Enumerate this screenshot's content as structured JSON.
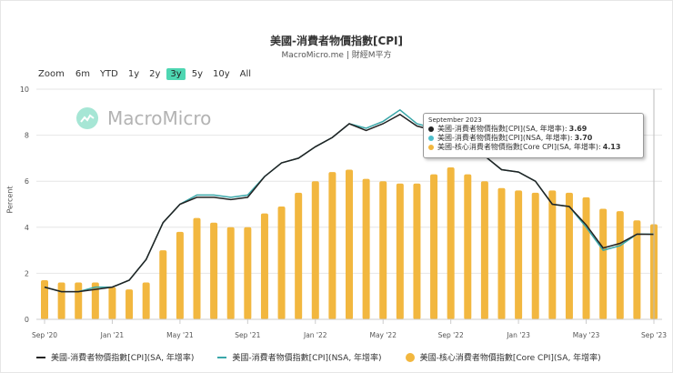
{
  "header": {
    "title": "美國-消費者物價指數[CPI]",
    "subtitle": "MacroMicro.me | 財經M平方"
  },
  "zoom": {
    "label": "Zoom",
    "buttons": [
      "6m",
      "YTD",
      "1y",
      "2y",
      "3y",
      "5y",
      "10y",
      "All"
    ],
    "active": "3y"
  },
  "watermark": "MacroMicro",
  "tooltip": {
    "title": "September 2023",
    "rows": [
      {
        "label": "美國-消費者物價指數[CPI](SA, 年增率):",
        "value": "3.69",
        "color": "#222222"
      },
      {
        "label": "美國-消費者物價指數[CPI](NSA, 年增率):",
        "value": "3.70",
        "color": "#4fbfcc"
      },
      {
        "label": "美國-核心消費者物價指數[Core CPI](SA, 年增率):",
        "value": "4.13",
        "color": "#f2b73f"
      }
    ]
  },
  "legend": [
    {
      "label": "美國-消費者物價指數[CPI](SA, 年增率)",
      "type": "line",
      "color": "#222222"
    },
    {
      "label": "美國-消費者物價指數[CPI](NSA, 年增率)",
      "type": "line",
      "color": "#3aa7a9"
    },
    {
      "label": "美國-核心消費者物價指數[Core CPI](SA, 年增率)",
      "type": "dot",
      "color": "#f2b73f"
    }
  ],
  "axis": {
    "ylabel": "Percent",
    "yticks": [
      "0",
      "2",
      "4",
      "6",
      "8",
      "10"
    ],
    "xticks": [
      "Sep '20",
      "Jan '21",
      "May '21",
      "Sep '21",
      "Jan '22",
      "May '22",
      "Sep '22",
      "Jan '23",
      "May '23",
      "Sep '23"
    ]
  },
  "chart_data": {
    "type": "bar+line",
    "title": "美國-消費者物價指數[CPI]",
    "subtitle": "MacroMicro.me | 財經M平方",
    "xlabel": "",
    "ylabel": "Percent",
    "ylim": [
      0,
      10
    ],
    "grid": true,
    "legend_position": "bottom",
    "categories": [
      "Sep '20",
      "Oct '20",
      "Nov '20",
      "Dec '20",
      "Jan '21",
      "Feb '21",
      "Mar '21",
      "Apr '21",
      "May '21",
      "Jun '21",
      "Jul '21",
      "Aug '21",
      "Sep '21",
      "Oct '21",
      "Nov '21",
      "Dec '21",
      "Jan '22",
      "Feb '22",
      "Mar '22",
      "Apr '22",
      "May '22",
      "Jun '22",
      "Jul '22",
      "Aug '22",
      "Sep '22",
      "Oct '22",
      "Nov '22",
      "Dec '22",
      "Jan '23",
      "Feb '23",
      "Mar '23",
      "Apr '23",
      "May '23",
      "Jun '23",
      "Jul '23",
      "Aug '23",
      "Sep '23"
    ],
    "series": [
      {
        "name": "美國-消費者物價指數[CPI](SA, 年增率)",
        "type": "line",
        "color": "#222222",
        "values": [
          1.4,
          1.2,
          1.2,
          1.3,
          1.4,
          1.7,
          2.6,
          4.2,
          5.0,
          5.3,
          5.3,
          5.2,
          5.3,
          6.2,
          6.8,
          7.0,
          7.5,
          7.9,
          8.5,
          8.2,
          8.5,
          8.9,
          8.4,
          8.2,
          8.2,
          7.7,
          7.1,
          6.5,
          6.4,
          6.0,
          5.0,
          4.9,
          4.1,
          3.1,
          3.3,
          3.7,
          3.69
        ]
      },
      {
        "name": "美國-消費者物價指數[CPI](NSA, 年增率)",
        "type": "line",
        "color": "#3aa7a9",
        "values": [
          1.4,
          1.2,
          1.2,
          1.4,
          1.4,
          1.7,
          2.6,
          4.2,
          5.0,
          5.4,
          5.4,
          5.3,
          5.4,
          6.2,
          6.8,
          7.0,
          7.5,
          7.9,
          8.5,
          8.3,
          8.6,
          9.1,
          8.5,
          8.3,
          8.2,
          7.7,
          7.1,
          6.5,
          6.4,
          6.0,
          5.0,
          4.9,
          4.0,
          3.0,
          3.2,
          3.7,
          3.7
        ]
      },
      {
        "name": "美國-核心消費者物價指數[Core CPI](SA, 年增率)",
        "type": "bar",
        "color": "#f2b73f",
        "values": [
          1.7,
          1.6,
          1.6,
          1.6,
          1.4,
          1.3,
          1.6,
          3.0,
          3.8,
          4.4,
          4.2,
          4.0,
          4.0,
          4.6,
          4.9,
          5.5,
          6.0,
          6.4,
          6.5,
          6.1,
          6.0,
          5.9,
          5.9,
          6.3,
          6.6,
          6.3,
          6.0,
          5.7,
          5.6,
          5.5,
          5.6,
          5.5,
          5.3,
          4.8,
          4.7,
          4.3,
          4.13
        ]
      }
    ]
  }
}
